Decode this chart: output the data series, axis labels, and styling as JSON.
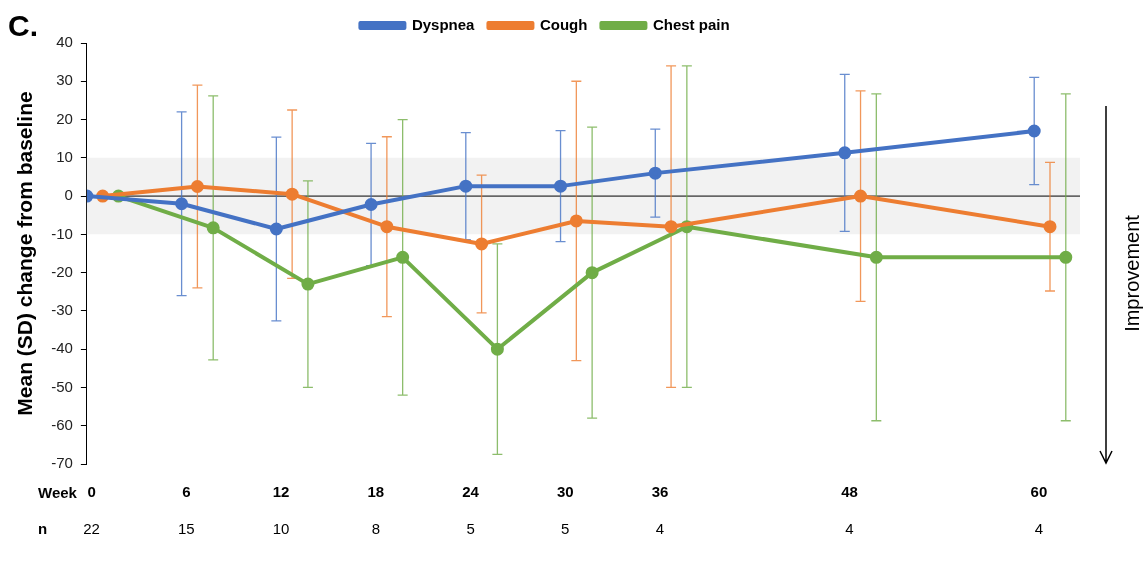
{
  "chart_data": {
    "type": "line",
    "title": "C.",
    "xlabel": "Week",
    "ylabel": "Mean (SD) change from baseline",
    "series": [
      {
        "name": "Dyspnea",
        "color": "#4472c4",
        "x": [
          -0.3,
          5.7,
          11.7,
          17.7,
          23.7,
          29.7,
          35.7,
          47.7,
          59.7
        ],
        "values": [
          0,
          -2,
          -8.6,
          -2.2,
          2.6,
          2.6,
          6,
          11.3,
          17
        ],
        "errors": [
          null,
          24,
          24,
          16,
          14,
          14.5,
          11.5,
          20.5,
          14
        ]
      },
      {
        "name": "Cough",
        "color": "#ed7d31",
        "x": [
          0.7,
          6.7,
          12.7,
          18.7,
          24.7,
          30.7,
          36.7,
          48.7,
          60.7
        ],
        "values": [
          0,
          2.5,
          0.5,
          -8,
          -12.5,
          -6.5,
          -8,
          0,
          -8
        ],
        "errors": [
          null,
          26.5,
          22,
          23.5,
          18,
          36.5,
          42,
          27.5,
          16.8
        ]
      },
      {
        "name": "Chest pain",
        "color": "#70ad47",
        "x": [
          1.7,
          7.7,
          13.7,
          19.7,
          25.7,
          31.7,
          37.7,
          49.7,
          61.7
        ],
        "values": [
          0,
          -8.3,
          -23,
          -16,
          -40,
          -20,
          -8,
          -16,
          -16
        ],
        "errors": [
          null,
          34.5,
          27,
          36,
          27.5,
          38,
          42,
          42.7,
          42.7
        ]
      }
    ],
    "xlim": [
      -0.3,
      62.6
    ],
    "xticks": [
      0,
      6,
      12,
      18,
      24,
      30,
      36,
      48,
      60
    ],
    "ylim": [
      -70,
      40
    ],
    "yticks": [
      -70,
      -60,
      -50,
      -40,
      -30,
      -20,
      -10,
      0,
      10,
      20,
      30,
      40
    ],
    "bands": [
      {
        "axis": "y",
        "from": -10,
        "to": 10,
        "color": "#f2f2f2"
      }
    ],
    "ref_lines": [
      {
        "axis": "y",
        "value": 0,
        "color": "#000000"
      }
    ],
    "annotations": [
      "Improvement",
      "n",
      "22",
      "15",
      "10",
      "8",
      "5",
      "5",
      "4",
      "4",
      "4"
    ],
    "marker": "circle",
    "line_style": "solid",
    "legend": "top",
    "grid": false
  }
}
